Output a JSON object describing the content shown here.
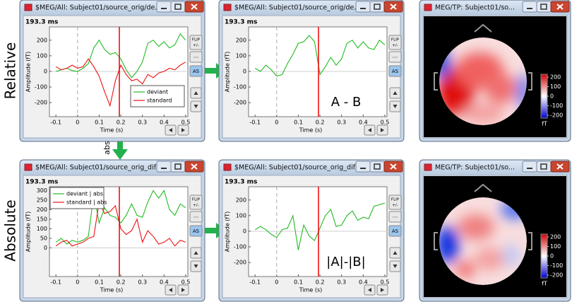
{
  "row_labels": [
    "Relative",
    "Absolute"
  ],
  "arrow_label": "abs",
  "buttons": [
    "FLIP",
    "+/-",
    "...",
    "AS"
  ],
  "windows": [
    {
      "title": "$MEG/All: Subject01/source_orig/de...",
      "time_label": "193.3 ms"
    },
    {
      "title": "$MEG/All: Subject01/source_orig/de...",
      "time_label": "193.3 ms"
    },
    {
      "title": "MEG/TP: Subject01/so..."
    },
    {
      "title": "$MEG/All: Subject01/source_orig_dif...",
      "time_label": "193.3 ms"
    },
    {
      "title": "$MEG/All: Subject01/source_orig_dif...",
      "time_label": "193.3 ms"
    },
    {
      "title": "MEG/TP: Subject01/so..."
    }
  ],
  "chart_data": [
    {
      "type": "line",
      "xlabel": "Time (s)",
      "ylabel": "Amplitude (fT)",
      "legend": "lower right",
      "cursor": 0.1933,
      "xlim": [
        -0.13,
        0.51
      ],
      "xticks": [
        -0.1,
        0,
        0.1,
        0.2,
        0.3,
        0.4,
        0.5
      ],
      "ylim": [
        -290,
        285
      ],
      "yticks": [
        -200,
        -100,
        0,
        100,
        200
      ],
      "x": [
        -0.1,
        -0.075,
        -0.05,
        -0.025,
        0,
        0.025,
        0.05,
        0.075,
        0.1,
        0.125,
        0.15,
        0.175,
        0.2,
        0.225,
        0.25,
        0.275,
        0.3,
        0.325,
        0.35,
        0.375,
        0.4,
        0.425,
        0.45,
        0.475,
        0.5
      ],
      "series": [
        {
          "name": "deviant",
          "color": "#22bb22",
          "values": [
            0,
            10,
            20,
            5,
            0,
            20,
            50,
            150,
            200,
            140,
            110,
            120,
            80,
            10,
            -40,
            0,
            60,
            180,
            200,
            160,
            190,
            150,
            170,
            240,
            200
          ]
        },
        {
          "name": "standard",
          "color": "#ee1111",
          "values": [
            30,
            10,
            20,
            40,
            20,
            30,
            80,
            30,
            -30,
            -130,
            -220,
            -60,
            40,
            -20,
            -60,
            -50,
            -80,
            -20,
            -40,
            -10,
            0,
            20,
            10,
            40,
            60
          ]
        }
      ]
    },
    {
      "type": "line",
      "xlabel": "Time (s)",
      "ylabel": "Amplitude (fT)",
      "annotation": "A - B",
      "cursor": 0.1933,
      "xlim": [
        -0.13,
        0.51
      ],
      "xticks": [
        -0.1,
        0,
        0.1,
        0.2,
        0.3,
        0.4,
        0.5
      ],
      "ylim": [
        -290,
        285
      ],
      "yticks": [
        -200,
        -100,
        0,
        100,
        200
      ],
      "x": [
        -0.1,
        -0.075,
        -0.05,
        -0.025,
        0,
        0.025,
        0.05,
        0.075,
        0.1,
        0.125,
        0.15,
        0.175,
        0.2,
        0.225,
        0.25,
        0.275,
        0.3,
        0.325,
        0.35,
        0.375,
        0.4,
        0.425,
        0.45,
        0.475,
        0.5
      ],
      "series": [
        {
          "color": "#22bb22",
          "values": [
            20,
            0,
            40,
            10,
            -30,
            -20,
            50,
            110,
            180,
            190,
            230,
            190,
            -20,
            30,
            90,
            40,
            80,
            180,
            200,
            150,
            190,
            150,
            140,
            200,
            170
          ]
        }
      ]
    },
    {
      "type": "line",
      "xlabel": "Time (s)",
      "ylabel": "Amplitude (fT)",
      "legend": "upper left",
      "cursor": 0.1933,
      "xlim": [
        -0.13,
        0.51
      ],
      "xticks": [
        -0.1,
        0,
        0.1,
        0.2,
        0.3,
        0.4,
        0.5
      ],
      "ylim": [
        -150,
        320
      ],
      "yticks": [
        0,
        50,
        100,
        150,
        200,
        250,
        300
      ],
      "x": [
        -0.1,
        -0.075,
        -0.05,
        -0.025,
        0,
        0.025,
        0.05,
        0.075,
        0.1,
        0.125,
        0.15,
        0.175,
        0.2,
        0.225,
        0.25,
        0.275,
        0.3,
        0.325,
        0.35,
        0.375,
        0.4,
        0.425,
        0.45,
        0.475,
        0.5
      ],
      "series": [
        {
          "name": "deviant | abs",
          "color": "#22bb22",
          "values": [
            30,
            50,
            20,
            40,
            30,
            40,
            60,
            280,
            130,
            210,
            170,
            160,
            130,
            170,
            230,
            170,
            160,
            240,
            300,
            260,
            300,
            200,
            170,
            230,
            210
          ]
        },
        {
          "name": "standard | abs",
          "color": "#ee1111",
          "values": [
            10,
            30,
            40,
            10,
            20,
            30,
            50,
            60,
            240,
            180,
            190,
            220,
            100,
            70,
            90,
            150,
            30,
            90,
            60,
            20,
            30,
            50,
            10,
            40,
            30
          ]
        }
      ]
    },
    {
      "type": "line",
      "xlabel": "Time (s)",
      "ylabel": "Amplitude (fT)",
      "annotation": "|A|-|B|",
      "cursor": 0.1933,
      "xlim": [
        -0.13,
        0.51
      ],
      "xticks": [
        -0.1,
        0,
        0.1,
        0.2,
        0.3,
        0.4,
        0.5
      ],
      "ylim": [
        -290,
        285
      ],
      "yticks": [
        -200,
        -100,
        0,
        100,
        200
      ],
      "x": [
        -0.1,
        -0.075,
        -0.05,
        -0.025,
        0,
        0.025,
        0.05,
        0.075,
        0.1,
        0.125,
        0.15,
        0.175,
        0.2,
        0.225,
        0.25,
        0.275,
        0.3,
        0.325,
        0.35,
        0.375,
        0.4,
        0.425,
        0.45,
        0.475,
        0.5
      ],
      "series": [
        {
          "color": "#22bb22",
          "values": [
            10,
            30,
            10,
            -20,
            -40,
            10,
            20,
            100,
            -120,
            40,
            -30,
            -60,
            20,
            100,
            140,
            30,
            40,
            100,
            130,
            70,
            90,
            80,
            160,
            170,
            180
          ]
        }
      ]
    }
  ],
  "topographies": [
    {
      "clim": [
        -230,
        230
      ],
      "colorbar_ticks": [
        200,
        100,
        0,
        -100,
        -200
      ],
      "unit": "fT"
    },
    {
      "clim": [
        -230,
        230
      ],
      "colorbar_ticks": [
        200,
        100,
        0,
        -100,
        -200
      ],
      "unit": "fT"
    }
  ]
}
